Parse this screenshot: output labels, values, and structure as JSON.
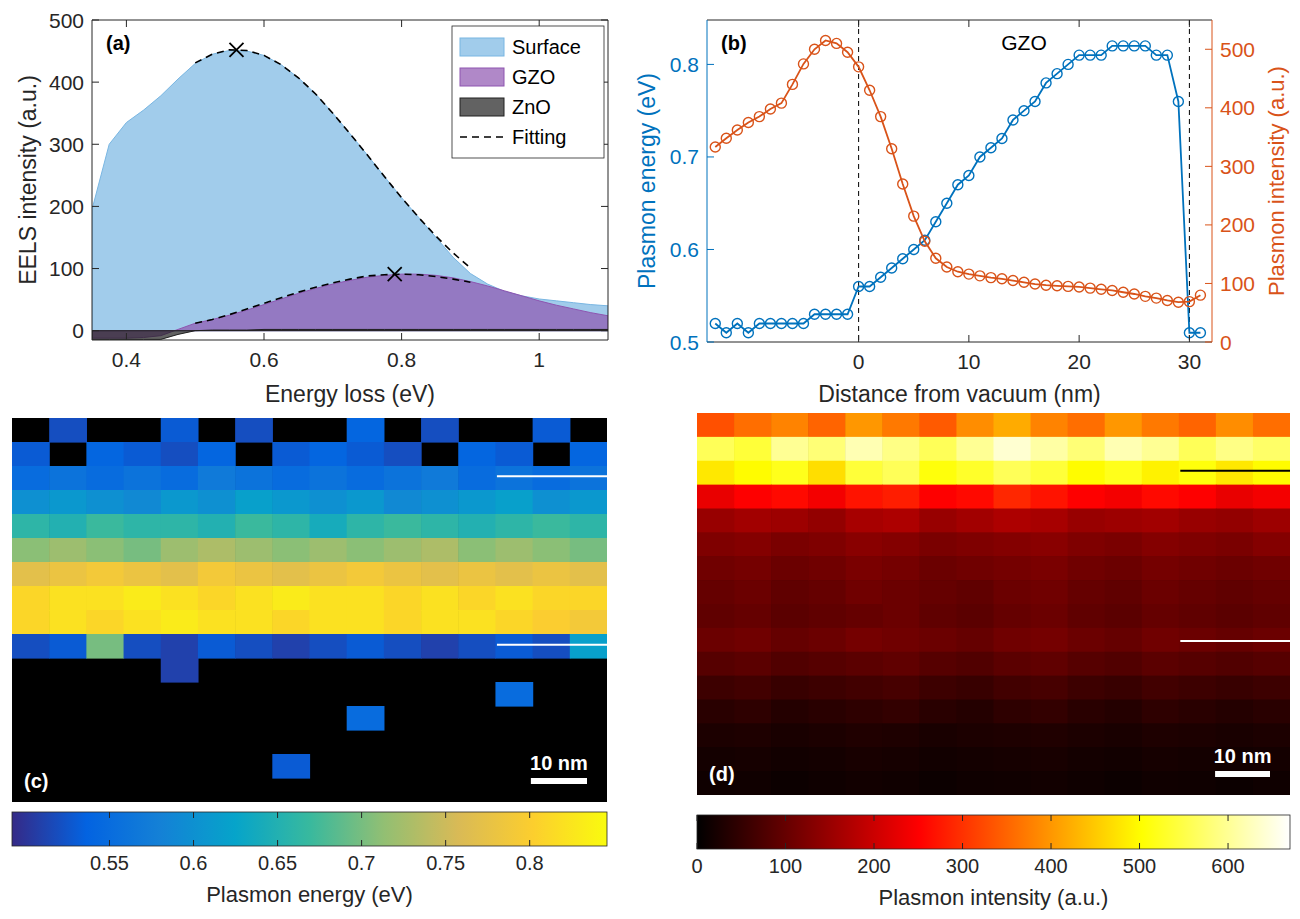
{
  "chart_data": [
    {
      "type": "area",
      "panel_label": "(a)",
      "x_label": "Energy loss (eV)",
      "y_label": "EELS intensity (a.u.)",
      "x": [
        0.35,
        0.375,
        0.4,
        0.425,
        0.45,
        0.475,
        0.5,
        0.525,
        0.55,
        0.575,
        0.6,
        0.625,
        0.65,
        0.675,
        0.7,
        0.725,
        0.75,
        0.775,
        0.8,
        0.825,
        0.85,
        0.875,
        0.9,
        0.925,
        0.95,
        0.975,
        1,
        1.025,
        1.05,
        1.075,
        1.1
      ],
      "series": [
        {
          "name": "Surface",
          "type": "area",
          "color": "#79b6e2",
          "values": [
            195,
            300,
            335,
            355,
            378,
            405,
            430,
            445,
            451,
            450,
            443,
            428,
            407,
            381,
            350,
            317,
            283,
            248,
            214,
            182,
            150,
            118,
            92,
            75,
            63,
            56,
            51,
            48,
            45,
            42,
            40
          ]
        },
        {
          "name": "GZO",
          "type": "area",
          "color": "#8e55b0",
          "values": [
            -12,
            -12,
            -12,
            -11,
            -8,
            2,
            12,
            18,
            25,
            33,
            42,
            51,
            60,
            68,
            75,
            81,
            86,
            89,
            91,
            91,
            89,
            85,
            79,
            72,
            64,
            56,
            48,
            41,
            35,
            29,
            24
          ]
        },
        {
          "name": "ZnO",
          "type": "area",
          "color": "#202020",
          "values": [
            -14,
            -14,
            -14,
            -14,
            -14,
            -6,
            0,
            1,
            1,
            1,
            2,
            2,
            2,
            2,
            2,
            2,
            2,
            2,
            2,
            2,
            2,
            2,
            2,
            2,
            2,
            2,
            2,
            2,
            2,
            2,
            2
          ]
        },
        {
          "name": "Fitting",
          "type": "line",
          "line_style": "dashed",
          "color": "#000000",
          "values": [
            null,
            null,
            null,
            null,
            null,
            null,
            431,
            445,
            452,
            451,
            443,
            428,
            407,
            381,
            350,
            317,
            283,
            248,
            214,
            182,
            152,
            125,
            101,
            null,
            null,
            null,
            null,
            null,
            null,
            null,
            null
          ]
        },
        {
          "type": "line",
          "line_style": "dashed",
          "color": "#000000",
          "values": [
            null,
            null,
            null,
            null,
            null,
            null,
            12,
            18,
            26,
            35,
            44,
            53,
            62,
            70,
            77,
            83,
            88,
            90,
            91,
            90,
            87,
            83,
            78,
            null,
            null,
            null,
            null,
            null,
            null,
            null,
            null
          ]
        },
        {
          "type": "scatter",
          "marker": "x",
          "color": "#000000",
          "x": [
            0.56,
            0.79
          ],
          "values": [
            452,
            91
          ]
        }
      ],
      "xlim": [
        0.35,
        1.1
      ],
      "ylim": [
        -15,
        500
      ],
      "xticks": [
        0.4,
        0.6,
        0.8,
        1
      ],
      "yticks": [
        0,
        100,
        200,
        300,
        400,
        500
      ],
      "legend": "top-right"
    },
    {
      "type": "line",
      "panel_label": "(b)",
      "x_label": "Distance from vacuum (nm)",
      "y_label": "Plasmon energy (eV)",
      "y2_label": "Plasmon intensity (a.u.)",
      "x": [
        -13,
        -12,
        -11,
        -10,
        -9,
        -8,
        -7,
        -6,
        -5,
        -4,
        -3,
        -2,
        -1,
        0,
        1,
        2,
        3,
        4,
        5,
        6,
        7,
        8,
        9,
        10,
        11,
        12,
        13,
        14,
        15,
        16,
        17,
        18,
        19,
        20,
        21,
        22,
        23,
        24,
        25,
        26,
        27,
        28,
        29,
        30,
        31
      ],
      "series": [
        {
          "type": "line",
          "color": "#0072bd",
          "marker": "circle",
          "values": [
            0.52,
            0.51,
            0.52,
            0.51,
            0.52,
            0.52,
            0.52,
            0.52,
            0.52,
            0.53,
            0.53,
            0.53,
            0.53,
            0.56,
            0.56,
            0.57,
            0.58,
            0.59,
            0.6,
            0.61,
            0.63,
            0.65,
            0.67,
            0.68,
            0.7,
            0.71,
            0.72,
            0.74,
            0.75,
            0.76,
            0.78,
            0.79,
            0.8,
            0.81,
            0.81,
            0.81,
            0.82,
            0.82,
            0.82,
            0.82,
            0.81,
            0.81,
            0.76,
            0.51,
            0.51
          ]
        },
        {
          "type": "line",
          "color": "#d95319",
          "marker": "circle",
          "axis": "y2",
          "values": [
            333,
            348,
            362,
            375,
            385,
            398,
            408,
            440,
            475,
            500,
            515,
            510,
            495,
            470,
            430,
            385,
            330,
            270,
            215,
            172,
            143,
            128,
            120,
            116,
            113,
            110,
            108,
            105,
            102,
            99,
            97,
            96,
            95,
            94,
            92,
            90,
            88,
            85,
            82,
            78,
            75,
            71,
            68,
            69,
            80
          ]
        }
      ],
      "xlim": [
        -13.75,
        32.05
      ],
      "ylim": [
        0.5,
        0.848
      ],
      "y2lim": [
        0,
        550
      ],
      "xticks": [
        0,
        10,
        20,
        30
      ],
      "yticks": [
        0.5,
        0.6,
        0.7,
        0.8
      ],
      "y2ticks": [
        0,
        100,
        200,
        300,
        400,
        500
      ],
      "vlines": [
        0,
        30
      ],
      "annotations": [
        {
          "text": "GZO",
          "x": 15
        }
      ]
    },
    {
      "type": "heatmap",
      "panel_label": "(c)",
      "color": "parula",
      "cells": [
        [
          null,
          0.52,
          null,
          null,
          0.53,
          null,
          0.52,
          null,
          null,
          0.54,
          null,
          0.52,
          null,
          null,
          0.53,
          null
        ],
        [
          0.53,
          null,
          0.54,
          0.53,
          0.52,
          0.54,
          null,
          0.53,
          0.54,
          0.53,
          0.52,
          null,
          0.54,
          0.53,
          null,
          0.54
        ],
        [
          0.55,
          0.56,
          0.55,
          0.56,
          0.55,
          0.57,
          0.56,
          0.55,
          0.56,
          0.55,
          0.56,
          0.57,
          0.55,
          0.56,
          0.55,
          0.56
        ],
        [
          0.6,
          0.61,
          0.6,
          0.59,
          0.61,
          0.6,
          0.62,
          0.61,
          0.6,
          0.61,
          0.59,
          0.6,
          0.61,
          0.62,
          0.6,
          0.61
        ],
        [
          0.66,
          0.65,
          0.67,
          0.66,
          0.66,
          0.65,
          0.67,
          0.66,
          0.64,
          0.66,
          0.67,
          0.66,
          0.65,
          0.66,
          0.67,
          0.66
        ],
        [
          0.71,
          0.72,
          0.71,
          0.7,
          0.72,
          0.73,
          0.72,
          0.71,
          0.72,
          0.71,
          0.72,
          0.73,
          0.71,
          0.72,
          0.71,
          0.7
        ],
        [
          0.77,
          0.78,
          0.79,
          0.78,
          0.77,
          0.79,
          0.78,
          0.77,
          0.78,
          0.79,
          0.78,
          0.77,
          0.78,
          0.77,
          0.78,
          0.77
        ],
        [
          0.81,
          0.82,
          0.82,
          0.83,
          0.82,
          0.81,
          0.82,
          0.83,
          0.82,
          0.82,
          0.81,
          0.82,
          0.81,
          0.82,
          0.81,
          0.81
        ],
        [
          0.81,
          0.82,
          0.81,
          0.82,
          0.83,
          0.82,
          0.82,
          0.81,
          0.82,
          0.82,
          0.81,
          0.82,
          0.82,
          0.81,
          0.8,
          0.79
        ],
        [
          0.52,
          0.53,
          0.7,
          0.52,
          0.51,
          0.53,
          0.52,
          0.51,
          0.52,
          0.53,
          0.52,
          0.51,
          0.52,
          0.53,
          0.52,
          0.62
        ],
        [
          null,
          null,
          null,
          null,
          0.51,
          null,
          null,
          null,
          null,
          null,
          null,
          null,
          null,
          null,
          null,
          null
        ],
        [
          null,
          null,
          null,
          null,
          null,
          null,
          null,
          null,
          null,
          null,
          null,
          null,
          null,
          0.55,
          null,
          null
        ],
        [
          null,
          null,
          null,
          null,
          null,
          null,
          null,
          null,
          null,
          0.55,
          null,
          null,
          null,
          null,
          null,
          null
        ],
        [
          null,
          null,
          null,
          null,
          null,
          null,
          null,
          null,
          null,
          null,
          null,
          null,
          null,
          null,
          null,
          null
        ],
        [
          null,
          null,
          null,
          null,
          null,
          null,
          null,
          0.53,
          null,
          null,
          null,
          null,
          null,
          null,
          null,
          null
        ],
        [
          null,
          null,
          null,
          null,
          null,
          null,
          null,
          null,
          null,
          null,
          null,
          null,
          null,
          null,
          null,
          null
        ]
      ],
      "colorbar": {
        "label": "Plasmon energy (eV)",
        "range": [
          0.492,
          0.846
        ],
        "ticks": [
          0.55,
          0.6,
          0.65,
          0.7,
          0.75,
          0.8
        ]
      },
      "width_nm": 106,
      "height_nm": 68.6,
      "scale_bar": {
        "label": "10 nm",
        "length": 10
      },
      "lines": [
        {
          "y": 10.4,
          "color": "#ffffff"
        },
        {
          "y": 40.5,
          "color": "#ffffff"
        }
      ]
    },
    {
      "type": "heatmap",
      "panel_label": "(d)",
      "color": "hot",
      "cells": [
        [
          330,
          360,
          380,
          350,
          400,
          370,
          340,
          390,
          420,
          380,
          360,
          400,
          370,
          350,
          390,
          360
        ],
        [
          560,
          540,
          600,
          580,
          620,
          590,
          560,
          600,
          640,
          610,
          580,
          620,
          600,
          560,
          590,
          570
        ],
        [
          480,
          500,
          520,
          470,
          540,
          560,
          510,
          530,
          560,
          540,
          500,
          520,
          490,
          510,
          480,
          500
        ],
        [
          230,
          250,
          260,
          240,
          270,
          280,
          250,
          260,
          290,
          270,
          250,
          240,
          260,
          250,
          230,
          240
        ],
        [
          150,
          160,
          155,
          145,
          165,
          170,
          150,
          160,
          170,
          165,
          150,
          155,
          160,
          150,
          145,
          155
        ],
        [
          125,
          130,
          120,
          125,
          135,
          130,
          120,
          125,
          130,
          135,
          125,
          120,
          130,
          125,
          120,
          130
        ],
        [
          110,
          115,
          105,
          110,
          120,
          115,
          105,
          110,
          115,
          120,
          110,
          105,
          115,
          110,
          105,
          110
        ],
        [
          100,
          105,
          95,
          100,
          110,
          105,
          100,
          95,
          105,
          110,
          100,
          95,
          105,
          100,
          95,
          100
        ],
        [
          95,
          100,
          90,
          95,
          100,
          105,
          95,
          90,
          100,
          105,
          95,
          90,
          100,
          95,
          90,
          95
        ],
        [
          105,
          110,
          100,
          105,
          115,
          110,
          105,
          100,
          110,
          115,
          105,
          100,
          110,
          105,
          100,
          105
        ],
        [
          85,
          90,
          80,
          85,
          90,
          95,
          85,
          80,
          90,
          95,
          85,
          80,
          90,
          85,
          80,
          85
        ],
        [
          60,
          65,
          55,
          60,
          65,
          70,
          60,
          55,
          65,
          70,
          60,
          55,
          65,
          60,
          55,
          60
        ],
        [
          40,
          45,
          35,
          40,
          45,
          50,
          40,
          35,
          45,
          50,
          40,
          35,
          45,
          40,
          35,
          40
        ],
        [
          28,
          30,
          25,
          28,
          32,
          30,
          25,
          28,
          30,
          32,
          28,
          25,
          30,
          28,
          25,
          28
        ],
        [
          20,
          22,
          18,
          20,
          24,
          22,
          18,
          20,
          22,
          24,
          20,
          18,
          22,
          20,
          18,
          20
        ],
        [
          15,
          16,
          12,
          15,
          18,
          16,
          12,
          15,
          16,
          18,
          15,
          12,
          16,
          15,
          12,
          15
        ]
      ],
      "colorbar": {
        "label": "Plasmon intensity (a.u.)",
        "range": [
          0,
          670
        ],
        "ticks": [
          0,
          100,
          200,
          300,
          400,
          500,
          600
        ]
      },
      "width_nm": 108,
      "height_nm": 69.5,
      "scale_bar": {
        "label": "10 nm",
        "length": 10
      },
      "lines": [
        {
          "y": 10.5,
          "color": "#000000"
        },
        {
          "y": 41.5,
          "color": "#ffffff"
        }
      ]
    }
  ]
}
